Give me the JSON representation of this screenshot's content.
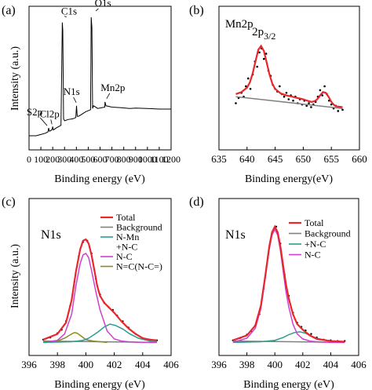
{
  "chart_data": [
    {
      "panel": "(a)",
      "type": "line",
      "xlabel": "Binding energy (eV)",
      "ylabel": "Intensity (a.u.)",
      "xlim": [
        0,
        1200
      ],
      "xticks": [
        0,
        100,
        200,
        300,
        400,
        500,
        600,
        700,
        800,
        900,
        1000,
        1100,
        1200
      ],
      "xticklabels": [
        "0",
        "100",
        "200",
        "300",
        "400",
        "500",
        "600",
        "700",
        "800",
        "900",
        "1000",
        "1100",
        "1200"
      ],
      "ylim": [
        0,
        100
      ],
      "colors": {
        "series": "#000000"
      },
      "series": [
        {
          "x": [
            0,
            60,
            100,
            140,
            160,
            166,
            172,
            185,
            195,
            200,
            205,
            230,
            270,
            281,
            285,
            292,
            300,
            330,
            370,
            395,
            401,
            407,
            420,
            480,
            520,
            525,
            531,
            537,
            545,
            580,
            640,
            642,
            650,
            700,
            780,
            850,
            900,
            1000,
            1100,
            1150,
            1200
          ],
          "y": [
            3,
            3,
            4,
            5,
            6,
            9,
            6.5,
            7,
            8,
            10,
            7.5,
            9,
            11,
            90,
            84,
            16,
            14.5,
            15.5,
            16,
            17,
            26,
            18,
            18,
            21.5,
            23,
            94,
            86,
            24,
            26,
            24,
            25,
            29,
            26,
            25,
            24.5,
            24,
            24.2,
            24,
            23.5,
            23.5,
            23.5
          ]
        }
      ],
      "annotations": [
        {
          "text": "C1s",
          "x": 285,
          "y": 90
        },
        {
          "text": "O1s",
          "x": 531,
          "y": 94
        },
        {
          "text": "N1s",
          "x": 399,
          "y": 26
        },
        {
          "text": "Mn2p",
          "x": 642,
          "y": 29
        },
        {
          "text": "S2p",
          "x": 166,
          "y": 9
        },
        {
          "text": "Cl2p",
          "x": 200,
          "y": 10
        }
      ]
    },
    {
      "panel": "(b)",
      "type": "scatter",
      "xlabel": "Binding energy(eV)",
      "ylabel": "",
      "xlim": [
        635,
        660
      ],
      "xticks": [
        635,
        640,
        645,
        650,
        655,
        660
      ],
      "xticklabels": [
        "635",
        "640",
        "645",
        "650",
        "655",
        "660"
      ],
      "ylim": [
        0,
        100
      ],
      "colors": {
        "points": "#000000",
        "fit": "#e8262c",
        "background": "#808080"
      },
      "annotations": [
        {
          "text": "Mn2p",
          "x": 638.6,
          "y": 86
        },
        {
          "text": "2p",
          "sub": "3/2",
          "x": 643.0,
          "y": 80
        }
      ],
      "series": [
        {
          "role": "points",
          "x": [
            638.0,
            638.5,
            639.0,
            639.4,
            639.8,
            640.2,
            640.6,
            641.0,
            641.4,
            641.8,
            642.2,
            642.6,
            643.0,
            643.4,
            643.8,
            644.2,
            644.6,
            645.0,
            645.4,
            645.8,
            646.2,
            646.6,
            647.0,
            647.4,
            647.8,
            648.2,
            648.6,
            649.0,
            649.4,
            649.8,
            650.2,
            650.6,
            651.0,
            651.4,
            651.8,
            652.2,
            652.6,
            653.0,
            653.4,
            653.8,
            654.2,
            654.6,
            655.0,
            655.4,
            655.8,
            656.2,
            656.6,
            657.0
          ],
          "y": [
            28,
            32,
            36,
            33,
            41,
            47,
            39,
            50,
            60,
            56,
            67,
            70,
            62,
            66,
            53,
            49,
            42,
            39,
            37,
            41,
            35,
            33,
            36,
            31,
            34,
            30,
            33,
            28,
            31,
            27,
            30,
            26,
            28,
            25,
            27,
            29,
            33,
            38,
            34,
            41,
            35,
            30,
            27,
            24,
            26,
            22,
            25,
            23
          ]
        },
        {
          "role": "fit",
          "x": [
            638.0,
            639.0,
            640.0,
            640.5,
            641.0,
            641.5,
            642.0,
            642.5,
            643.0,
            643.5,
            644.0,
            644.5,
            645.0,
            646.0,
            647.0,
            648.0,
            649.0,
            650.0,
            651.0,
            651.5,
            652.0,
            652.5,
            653.0,
            653.5,
            654.0,
            654.5,
            655.0,
            655.5,
            656.0,
            657.0
          ],
          "y": [
            35,
            36.5,
            40,
            44,
            51,
            60,
            69,
            72,
            68,
            59,
            50,
            43,
            39,
            35.5,
            34,
            33,
            32,
            31,
            29.5,
            29,
            29.5,
            31,
            34,
            36.5,
            36,
            33,
            29,
            26.5,
            25.5,
            25
          ]
        },
        {
          "role": "background",
          "x": [
            638,
            657
          ],
          "y": [
            33,
            24
          ]
        }
      ]
    },
    {
      "panel": "(c)",
      "type": "line",
      "xlabel": "Binding energy (eV)",
      "ylabel": "Intensity (a.u.)",
      "xlim": [
        396,
        406
      ],
      "xticks": [
        396,
        398,
        400,
        402,
        404,
        406
      ],
      "xticklabels": [
        "396",
        "398",
        "400",
        "402",
        "404",
        "406"
      ],
      "ylim": [
        0,
        100
      ],
      "label": "N1s",
      "legend": "top-right",
      "legend_entries": [
        "Total",
        "Background",
        "N-Mn",
        "+N-C",
        "N-C",
        "N=C(N-C=)"
      ],
      "colors": {
        "Total": "#e8262c",
        "Background": "#808080",
        "N-Mn": "#3030d0",
        "N-C": "#d040d0",
        "N=C(N-C=)": "#8a8a20",
        "N-Mn +N-C": "#2a9d8f",
        "points": "#000000"
      },
      "series": [
        {
          "legend_index": 0,
          "x": [
            397.0,
            398.0,
            398.6,
            399.0,
            399.3,
            399.6,
            399.8,
            400.0,
            400.2,
            400.4,
            400.6,
            400.8,
            401.0,
            401.3,
            401.6,
            402.0,
            402.5,
            403.0,
            403.5,
            404.0,
            404.5,
            405.0
          ],
          "y": [
            4,
            8,
            16,
            32,
            52,
            68,
            74,
            75,
            72,
            64,
            53,
            42,
            35,
            30,
            27,
            23,
            17,
            12,
            8,
            5,
            4,
            3.5
          ]
        },
        {
          "legend_index": 1,
          "x": [
            397,
            405
          ],
          "y": [
            3,
            2
          ]
        },
        {
          "legend_index": 5,
          "x": [
            397.0,
            398.0,
            398.5,
            399.0,
            399.2,
            399.4,
            399.6,
            400.0,
            400.5,
            401.0,
            401.5
          ],
          "y": [
            2.5,
            3,
            5,
            8,
            9,
            8.5,
            7,
            4,
            3,
            2.5,
            2
          ]
        },
        {
          "legend_index": 4,
          "x": [
            397.0,
            398.0,
            398.5,
            399.0,
            399.3,
            399.6,
            399.8,
            400.0,
            400.2,
            400.4,
            400.7,
            401.0,
            401.5,
            402.0,
            402.5,
            403.0,
            404.0,
            405.0
          ],
          "y": [
            2,
            3.5,
            8,
            22,
            42,
            58,
            64,
            65,
            62,
            53,
            38,
            25,
            10,
            4.5,
            3,
            2.5,
            2,
            2
          ]
        },
        {
          "legend_index": 2,
          "x": [
            397.0,
            399.0,
            399.8,
            400.2,
            400.8,
            401.3,
            401.7,
            402.1,
            402.6,
            403.1,
            403.7,
            404.5,
            405.0
          ],
          "y": [
            2,
            2.5,
            3.5,
            5,
            9,
            13,
            15,
            14,
            11.5,
            8,
            5,
            3,
            2.5
          ]
        }
      ],
      "points": {
        "x": [
          397.0,
          397.5,
          398.0,
          398.3,
          398.6,
          398.9,
          399.2,
          399.5,
          399.8,
          400.1,
          400.4,
          400.7,
          401.0,
          401.3,
          401.6,
          401.9,
          402.2,
          402.6,
          403.0,
          403.5,
          404.0,
          404.5,
          405.0
        ],
        "y": [
          4,
          5.5,
          8.5,
          11,
          17,
          28,
          45,
          63,
          73,
          74,
          65,
          47,
          36,
          30,
          27,
          25,
          21,
          17,
          12.5,
          8,
          5,
          4,
          3.5
        ]
      }
    },
    {
      "panel": "(d)",
      "type": "line",
      "xlabel": "Binding energy (eV)",
      "ylabel": "",
      "xlim": [
        396,
        406
      ],
      "xticks": [
        396,
        398,
        400,
        402,
        404,
        406
      ],
      "xticklabels": [
        "396",
        "398",
        "400",
        "402",
        "404",
        "406"
      ],
      "ylim": [
        0,
        100
      ],
      "label": "N1s",
      "legend": "top-right",
      "legend_entries": [
        "Total",
        "Background",
        "+N-C",
        "N-C"
      ],
      "colors": {
        "Total": "#e8262c",
        "Background": "#808080",
        "N-C": "#d040d0",
        "+N-C": "#2a9d8f",
        "points": "#000000"
      },
      "series": [
        {
          "legend_index": 0,
          "x": [
            397.0,
            398.0,
            398.6,
            399.0,
            399.3,
            399.6,
            399.8,
            400.0,
            400.2,
            400.4,
            400.6,
            400.8,
            401.0,
            401.3,
            401.6,
            402.0,
            402.5,
            403.0,
            404.0,
            405.0
          ],
          "y": [
            3.5,
            7,
            14,
            28,
            48,
            70,
            80,
            84,
            80,
            70,
            56,
            43,
            33,
            22,
            15,
            11,
            7,
            4.5,
            3,
            2.5
          ]
        },
        {
          "legend_index": 1,
          "x": [
            397,
            405
          ],
          "y": [
            3,
            2
          ]
        },
        {
          "legend_index": 2,
          "x": [
            397.0,
            399.0,
            400.0,
            400.6,
            401.0,
            401.4,
            401.8,
            402.2,
            402.6,
            403.0,
            403.6,
            404.5,
            405.0
          ],
          "y": [
            2,
            2.5,
            3.5,
            5.5,
            7.5,
            9,
            9.5,
            8.5,
            6.5,
            5,
            3.5,
            2.5,
            2.5
          ]
        },
        {
          "legend_index": 3,
          "x": [
            397.0,
            398.0,
            398.6,
            399.0,
            399.3,
            399.6,
            399.8,
            400.0,
            400.2,
            400.4,
            400.6,
            400.8,
            401.0,
            401.3,
            401.6,
            402.0,
            402.5,
            403.0,
            404.0,
            405.0
          ],
          "y": [
            2,
            5,
            12,
            26,
            46,
            68,
            78,
            82,
            78,
            67,
            52,
            38,
            27,
            15,
            8,
            4.5,
            3,
            2.5,
            2,
            2
          ]
        }
      ],
      "points": {
        "x": [
          397.0,
          397.5,
          398.0,
          398.3,
          398.6,
          398.9,
          399.2,
          399.5,
          399.8,
          400.1,
          400.4,
          400.7,
          401.0,
          401.3,
          401.6,
          401.9,
          402.2,
          402.6,
          403.0,
          403.5,
          404.0,
          404.5,
          405.0
        ],
        "y": [
          3.5,
          5,
          7.5,
          10,
          14,
          22,
          40,
          62,
          79,
          84,
          72,
          50,
          35,
          23,
          16,
          13,
          10.5,
          8,
          5.5,
          4,
          3.5,
          3,
          3
        ]
      }
    }
  ]
}
